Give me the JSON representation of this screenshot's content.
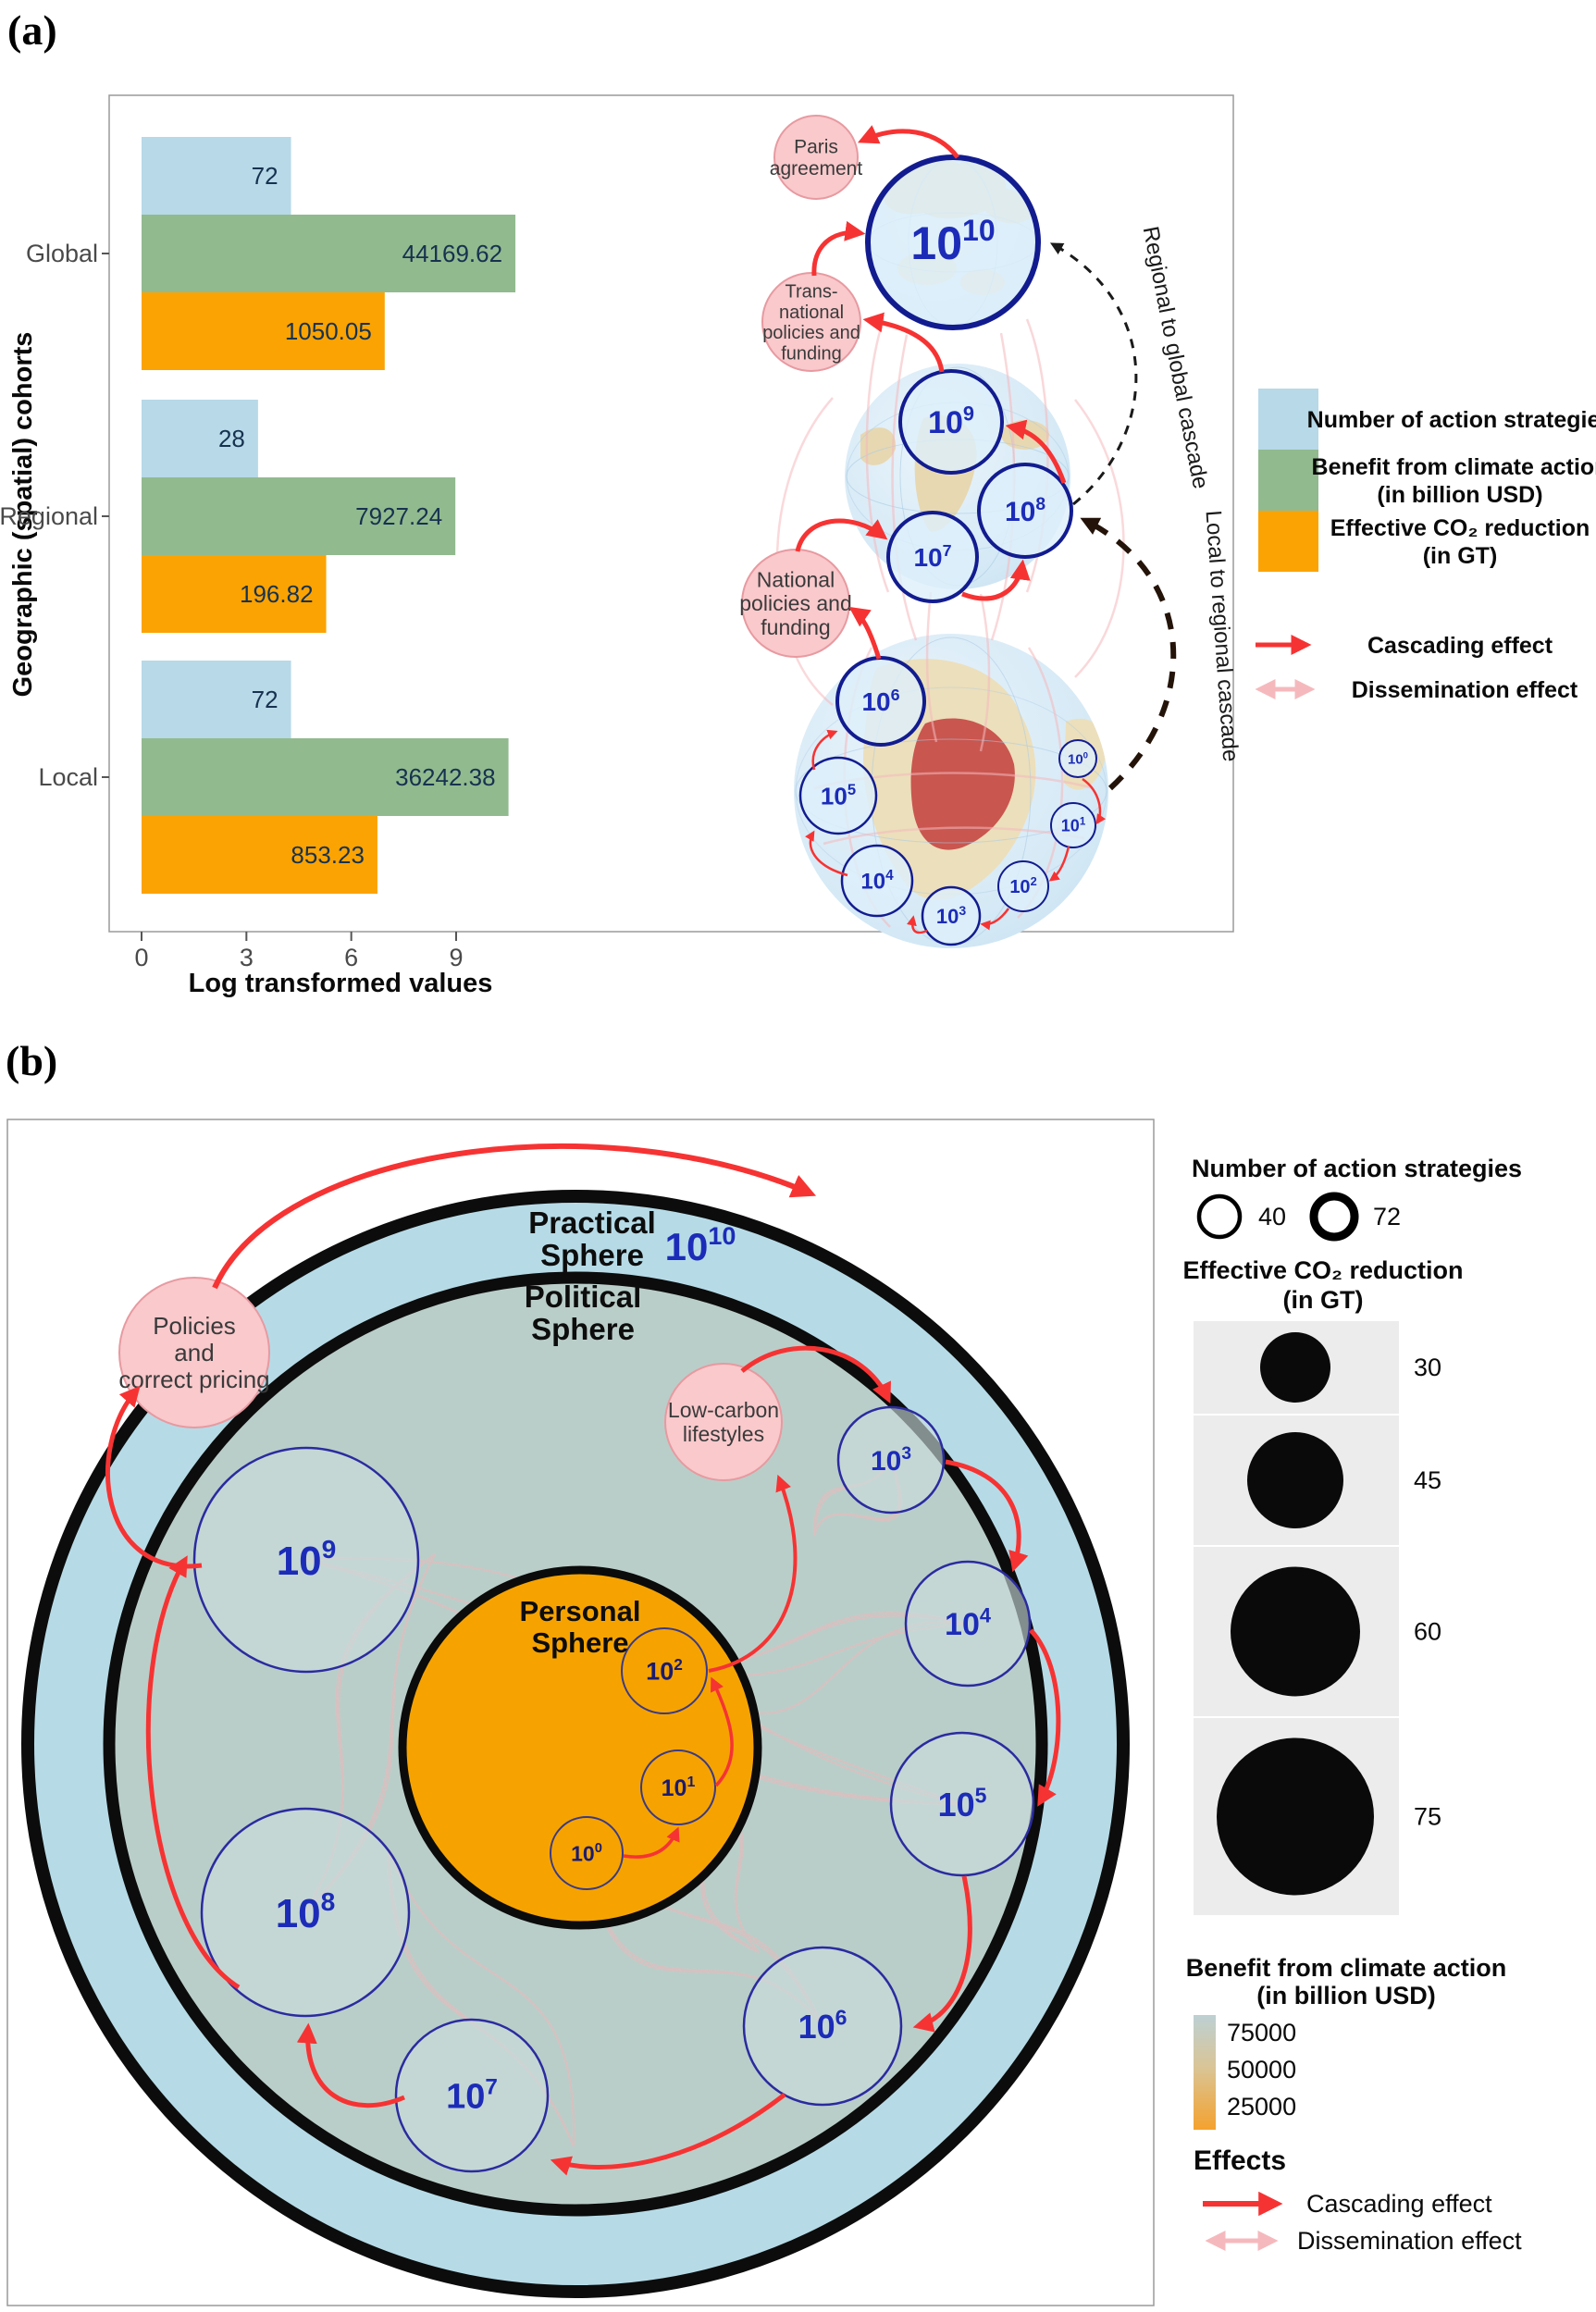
{
  "figure": {
    "panel_a_tag": "(a)",
    "panel_b_tag": "(b)"
  },
  "colors": {
    "bar_blue": "#b7d9e8",
    "bar_green": "#92ba8f",
    "bar_orange": "#fba303",
    "accent_red": "#f63333",
    "bubble_pink": "#f9c9cc",
    "dissemination_pink": "#f5b9bd",
    "navy_text": "#1c2cb8",
    "practical_ring_blue": "#b6dbe7",
    "political_grey_green": "#bacec9",
    "personal_orange": "#f6a301",
    "legend_cell_grey": "#ececec"
  },
  "panel_a": {
    "chart_data": {
      "type": "bar",
      "orientation": "horizontal",
      "title": "",
      "xlabel": "Log transformed values",
      "ylabel": "Geographic (spatial) cohorts",
      "x_ticks": [
        0,
        3,
        6,
        9
      ],
      "xlim": [
        0,
        11.4
      ],
      "x_transform": "natural log of values",
      "categories": [
        "Global",
        "Regional",
        "Local"
      ],
      "series": [
        {
          "name": "Number of action strategies",
          "color": "#b7d9e8",
          "values": [
            72,
            28,
            72
          ]
        },
        {
          "name": "Benefit from climate action (in billion USD)",
          "color": "#92ba8f",
          "values": [
            44169.62,
            7927.24,
            36242.38
          ]
        },
        {
          "name": "Effective CO₂ reduction (in GT)",
          "color": "#fba303",
          "values": [
            1050.05,
            196.82,
            853.23
          ]
        }
      ],
      "value_labels": [
        [
          "72",
          "28",
          "72"
        ],
        [
          "44169.62",
          "7927.24",
          "36242.38"
        ],
        [
          "1050.05",
          "196.82",
          "853.23"
        ]
      ],
      "legend_position": "right"
    },
    "legend": {
      "items": [
        {
          "lines": [
            "Number of action strategies"
          ]
        },
        {
          "lines": [
            "Benefit from climate action",
            "(in billion USD)"
          ]
        },
        {
          "lines": [
            "Effective CO₂ reduction",
            "(in GT)"
          ]
        }
      ],
      "effects": [
        {
          "label": "Cascading effect"
        },
        {
          "label": "Dissemination effect"
        }
      ]
    },
    "diagram": {
      "exponents": [
        10,
        9,
        8,
        7,
        6,
        5,
        4,
        3,
        2,
        1,
        0
      ],
      "bubbles": [
        {
          "key": "paris",
          "lines": [
            "Paris",
            "agreement"
          ]
        },
        {
          "key": "transnational",
          "lines": [
            "Trans-",
            "national",
            "policies and",
            "funding"
          ]
        },
        {
          "key": "national",
          "lines": [
            "National",
            "policies and",
            "funding"
          ]
        }
      ],
      "cascade_labels": {
        "regional_global": "Regional to global cascade",
        "local_regional": "Local to regional cascade"
      }
    }
  },
  "panel_b": {
    "spheres": {
      "practical": [
        "Practical",
        "Sphere"
      ],
      "political": [
        "Political",
        "Sphere"
      ],
      "personal": [
        "Personal",
        "Sphere"
      ]
    },
    "practical_exponent": {
      "base": "10",
      "exp": "10"
    },
    "political_exponents": [
      9,
      8,
      7,
      6,
      5,
      4,
      3
    ],
    "personal_exponents": [
      2,
      1,
      0
    ],
    "bubbles": [
      {
        "key": "policies",
        "lines": [
          "Policies",
          "and",
          "correct pricing"
        ]
      },
      {
        "key": "lowcarbon",
        "lines": [
          "Low-carbon",
          "lifestyles"
        ]
      }
    ],
    "legend": {
      "action_strategies": {
        "title": "Number of action strategies",
        "items": [
          {
            "value": "40",
            "ring": "thin"
          },
          {
            "value": "72",
            "ring": "thick"
          }
        ]
      },
      "co2": {
        "title_line1": "Effective CO₂ reduction",
        "title_line2": "(in GT)",
        "values": [
          "30",
          "45",
          "60",
          "75"
        ]
      },
      "benefit": {
        "title_line1": "Benefit from climate action",
        "title_line2": "(in billion USD)",
        "ticks": [
          "75000",
          "50000",
          "25000"
        ]
      },
      "effects": {
        "title": "Effects",
        "items": [
          "Cascading effect",
          "Dissemination effect"
        ]
      }
    }
  }
}
